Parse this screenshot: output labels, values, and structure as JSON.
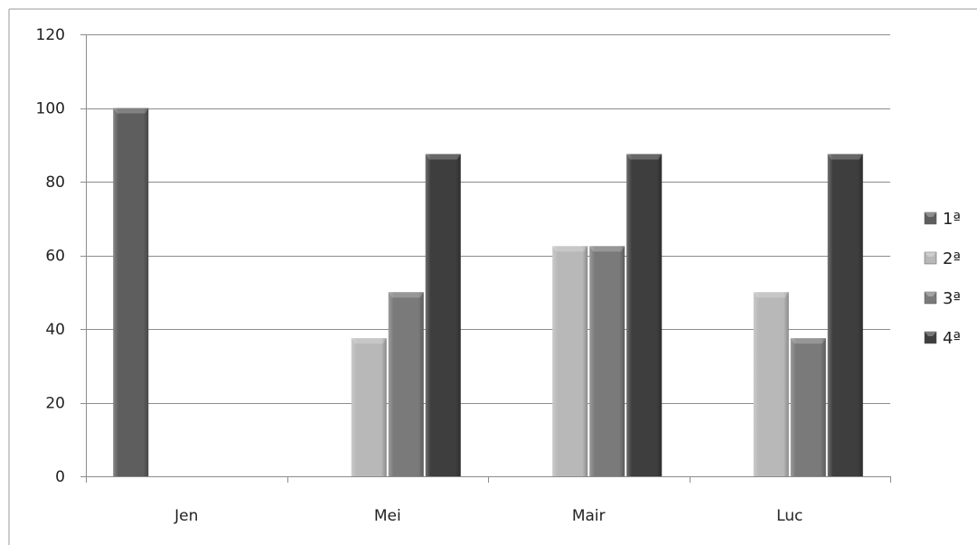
{
  "chart_data": {
    "type": "bar",
    "categories": [
      "Jen",
      "Mei",
      "Mair",
      "Luc"
    ],
    "series": [
      {
        "name": "1ª",
        "values": [
          100,
          0,
          0,
          0
        ],
        "color": "#5e5e5e"
      },
      {
        "name": "2ª",
        "values": [
          0,
          37.5,
          62.5,
          50
        ],
        "color": "#b8b8b8"
      },
      {
        "name": "3ª",
        "values": [
          0,
          50,
          62.5,
          37.5
        ],
        "color": "#7a7a7a"
      },
      {
        "name": "4ª",
        "values": [
          0,
          87.5,
          87.5,
          87.5
        ],
        "color": "#3e3e3e"
      }
    ],
    "yticks": [
      0,
      20,
      40,
      60,
      80,
      100,
      120
    ],
    "ylim": [
      0,
      120
    ],
    "grid": true,
    "legend_position": "right",
    "title": "",
    "xlabel": "",
    "ylabel": ""
  }
}
